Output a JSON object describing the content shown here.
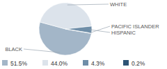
{
  "chart_data": {
    "type": "pie",
    "categories": [
      "BLACK",
      "WHITE",
      "HISPANIC",
      "PACIFIC ISLANDER"
    ],
    "values": [
      51.5,
      44.0,
      4.3,
      0.2
    ],
    "value_labels": [
      "51.5%",
      "44.0%",
      "4.3%",
      "0.2%"
    ],
    "colors": [
      "#a3b6c8",
      "#dce3eb",
      "#6f8ea8",
      "#2e5475"
    ]
  }
}
